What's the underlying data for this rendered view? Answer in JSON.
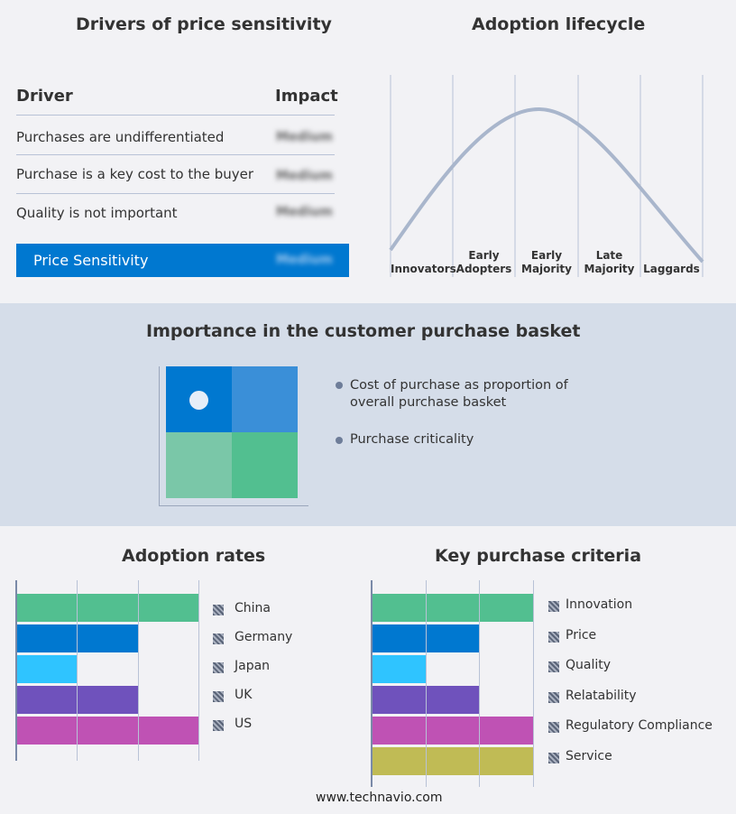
{
  "drivers": {
    "title": "Drivers of price sensitivity",
    "col_driver": "Driver",
    "col_impact": "Impact",
    "rows": [
      {
        "driver": "Purchases are undifferentiated",
        "impact": "Medium"
      },
      {
        "driver": "Purchase is a key cost to the buyer",
        "impact": "Medium"
      },
      {
        "driver": "Quality is not important",
        "impact": "Medium"
      }
    ],
    "summary": {
      "label": "Price Sensitivity",
      "impact": "Medium"
    }
  },
  "lifecycle": {
    "title": "Adoption lifecycle",
    "stages": [
      [
        "Innovators"
      ],
      [
        "Early",
        "Adopters"
      ],
      [
        "Early",
        "Majority"
      ],
      [
        "Late",
        "Majority"
      ],
      [
        "Laggards"
      ]
    ]
  },
  "basket": {
    "title": "Importance in the customer purchase basket",
    "legend": [
      "Cost of purchase as proportion of overall purchase basket",
      "Purchase criticality"
    ],
    "colors": [
      "#0078d0",
      "#3a8fd8",
      "#7ac7a8",
      "#52bf90"
    ]
  },
  "chart_data": [
    {
      "type": "bar",
      "title": "Adoption rates",
      "categories": [
        "China",
        "Germany",
        "Japan",
        "UK",
        "US"
      ],
      "values": [
        3,
        2,
        1,
        2,
        3
      ],
      "xlim": [
        0,
        3
      ],
      "grid": true,
      "legend": "right",
      "colors": [
        "#52bf90",
        "#0078d0",
        "#2fc4ff",
        "#6f52bc",
        "#bf52b4"
      ]
    },
    {
      "type": "bar",
      "title": "Key purchase criteria",
      "categories": [
        "Innovation",
        "Price",
        "Quality",
        "Relatability",
        "Regulatory Compliance",
        "Service"
      ],
      "values": [
        3,
        2,
        1,
        2,
        3,
        3
      ],
      "xlim": [
        0,
        3
      ],
      "grid": true,
      "legend": "right",
      "colors": [
        "#52bf90",
        "#0078d0",
        "#2fc4ff",
        "#6f52bc",
        "#bf52b4",
        "#c0bb55"
      ]
    }
  ],
  "footer": "www.technavio.com"
}
